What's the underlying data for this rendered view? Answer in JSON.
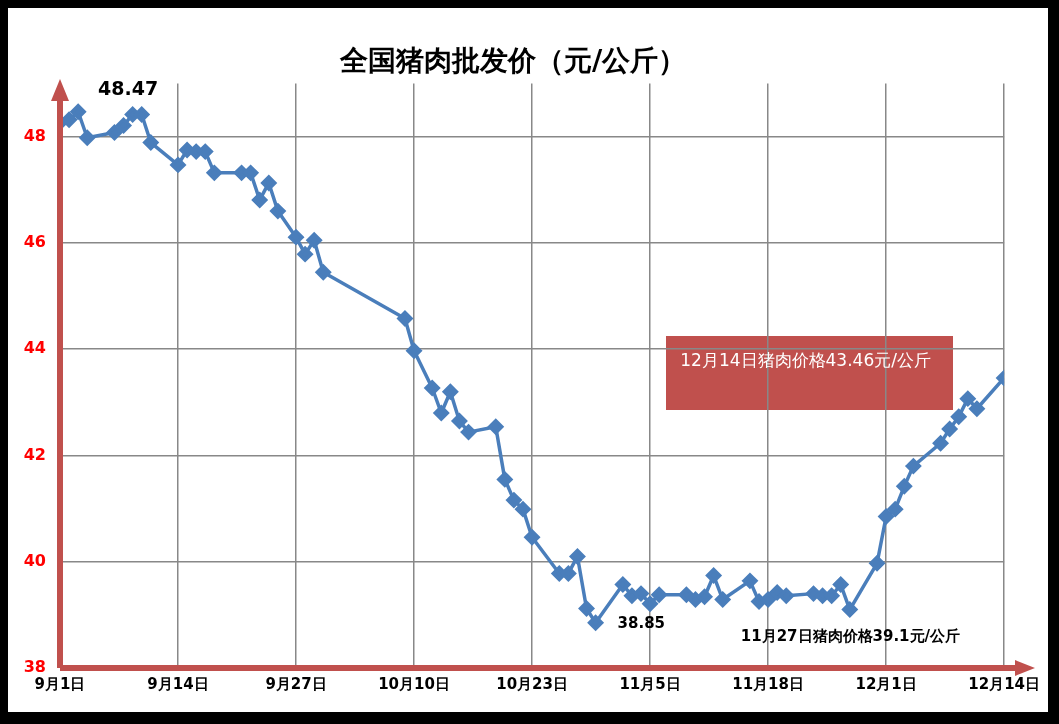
{
  "chart_data": {
    "type": "line",
    "title": "全国猪肉批发价（元/公斤）",
    "x": [
      "--09-01",
      "--09-02",
      "--09-03",
      "--09-04",
      "--09-07",
      "--09-08",
      "--09-09",
      "--09-10",
      "--09-11",
      "--09-14",
      "--09-15",
      "--09-16",
      "--09-17",
      "--09-18",
      "--09-21",
      "--09-22",
      "--09-23",
      "--09-24",
      "--09-25",
      "--09-27",
      "--09-28",
      "--09-29",
      "--09-30",
      "--10-09",
      "--10-10",
      "--10-12",
      "--10-13",
      "--10-14",
      "--10-15",
      "--10-16",
      "--10-19",
      "--10-20",
      "--10-21",
      "--10-22",
      "--10-23",
      "--10-26",
      "--10-27",
      "--10-28",
      "--10-29",
      "--10-30",
      "--11-02",
      "--11-03",
      "--11-04",
      "--11-05",
      "--11-06",
      "--11-09",
      "--11-10",
      "--11-11",
      "--11-12",
      "--11-13",
      "--11-16",
      "--11-17",
      "--11-18",
      "--11-19",
      "--11-20",
      "--11-23",
      "--11-24",
      "--11-25",
      "--11-26",
      "--11-27",
      "--11-30",
      "--12-01",
      "--12-02",
      "--12-03",
      "--12-04",
      "--12-07",
      "--12-08",
      "--12-09",
      "--12-10",
      "--12-11",
      "--12-14"
    ],
    "series": [
      {
        "color": "#4a7ebb",
        "values": [
          48.27,
          48.32,
          48.47,
          47.98,
          48.08,
          48.21,
          48.42,
          48.42,
          47.89,
          47.47,
          47.75,
          47.72,
          47.72,
          47.32,
          47.32,
          47.32,
          46.81,
          47.13,
          46.6,
          46.11,
          45.79,
          46.05,
          45.45,
          44.58,
          43.97,
          43.27,
          42.8,
          43.2,
          42.65,
          42.44,
          42.54,
          41.55,
          41.16,
          40.99,
          40.46,
          39.78,
          39.78,
          40.1,
          39.12,
          38.85,
          39.57,
          39.36,
          39.4,
          39.21,
          39.38,
          39.38,
          39.29,
          39.34,
          39.74,
          39.29,
          39.64,
          39.25,
          39.29,
          39.42,
          39.36,
          39.4,
          39.36,
          39.36,
          39.57,
          39.1,
          39.97,
          40.85,
          40.99,
          41.42,
          41.8,
          42.23,
          42.5,
          42.73,
          43.07,
          42.88,
          43.46
        ]
      }
    ],
    "xlim": [
      "--09-01",
      "--12-14"
    ],
    "xticks": [
      {
        "value": "--09-01",
        "label": "9月1日"
      },
      {
        "value": "--09-14",
        "label": "9月14日"
      },
      {
        "value": "--09-27",
        "label": "9月27日"
      },
      {
        "value": "--10-10",
        "label": "10月10日"
      },
      {
        "value": "--10-23",
        "label": "10月23日"
      },
      {
        "value": "--11-05",
        "label": "11月5日"
      },
      {
        "value": "--11-18",
        "label": "11月18日"
      },
      {
        "value": "--12-01",
        "label": "12月1日"
      },
      {
        "value": "--12-14",
        "label": "12月14日"
      }
    ],
    "ylim": [
      38,
      49
    ],
    "yticks": [
      38,
      40,
      42,
      44,
      46,
      48
    ],
    "grid": true,
    "legend": false,
    "marker": "diamond",
    "line_style": "solid",
    "annotations": [
      {
        "text": "48.47",
        "x": "--09-03",
        "y": 48.47
      },
      {
        "text": "38.85",
        "x": "--10-30",
        "y": 38.85
      },
      {
        "text": "11月27日猪肉价格39.1元/公斤",
        "x": "--11-27",
        "y": 39.1
      },
      "12月14日猪肉价格43.46元/公斤"
    ]
  }
}
